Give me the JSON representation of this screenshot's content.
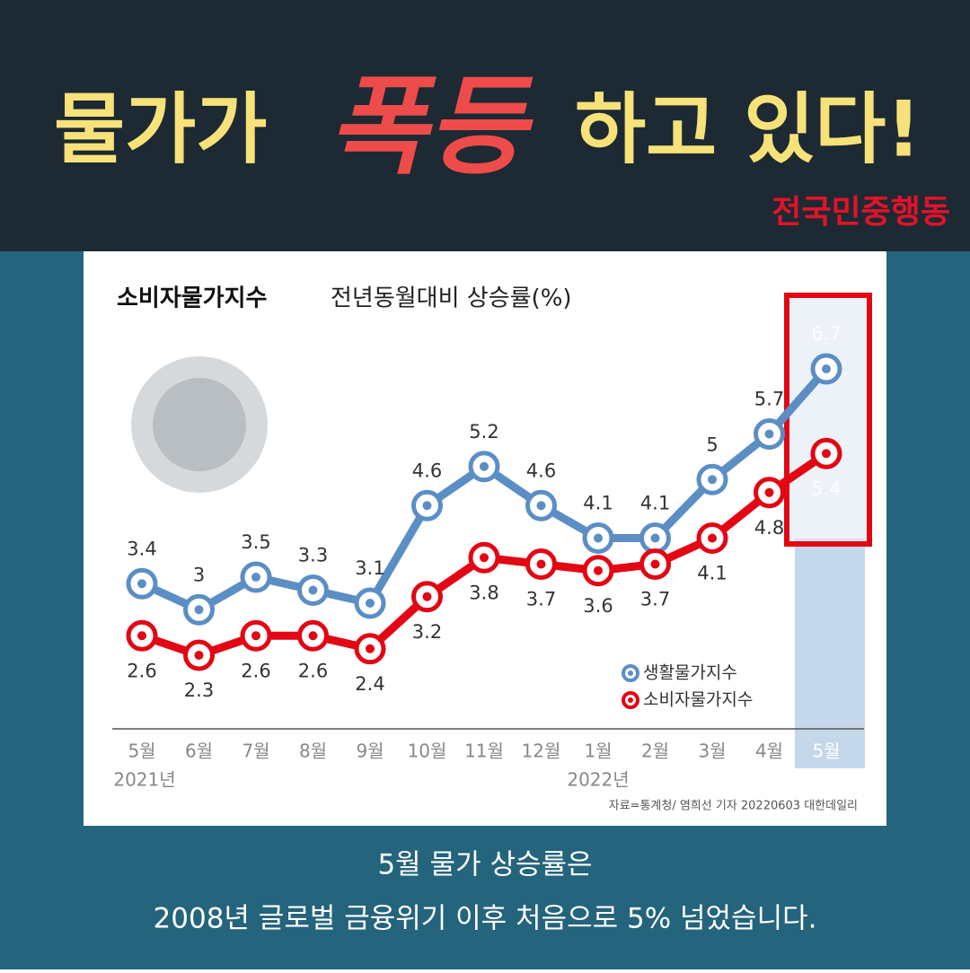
{
  "header": {
    "title_parts": [
      "물가가",
      "폭등",
      "하고 있다!"
    ],
    "brand": "전국민중행동"
  },
  "chart_data": {
    "type": "line",
    "title": "소비자물가지수",
    "subtitle": "전년동월대비 상승률(%)",
    "categories": [
      "5월",
      "6월",
      "7월",
      "8월",
      "9월",
      "10월",
      "11월",
      "12월",
      "1월",
      "2월",
      "3월",
      "4월",
      "5월"
    ],
    "years": [
      "2021년",
      null,
      null,
      null,
      null,
      null,
      null,
      null,
      "2022년",
      null,
      null,
      null,
      null
    ],
    "series": [
      {
        "name": "생활물가지수",
        "color": "#5b8ec4",
        "values": [
          3.4,
          3.0,
          3.5,
          3.3,
          3.1,
          4.6,
          5.2,
          4.6,
          4.1,
          4.1,
          5.0,
          5.7,
          6.7
        ]
      },
      {
        "name": "소비자물가지수",
        "color": "#e30613",
        "values": [
          2.6,
          2.3,
          2.6,
          2.6,
          2.4,
          3.2,
          3.8,
          3.7,
          3.6,
          3.7,
          4.1,
          4.8,
          5.4
        ]
      }
    ],
    "source": "자료=통계청/ 염희선 기자 20220603 대한데일리"
  },
  "caption": [
    "5월 물가 상승률은",
    "2008년 글로벌 금융위기 이후 처음으로 5% 넘었습니다."
  ]
}
